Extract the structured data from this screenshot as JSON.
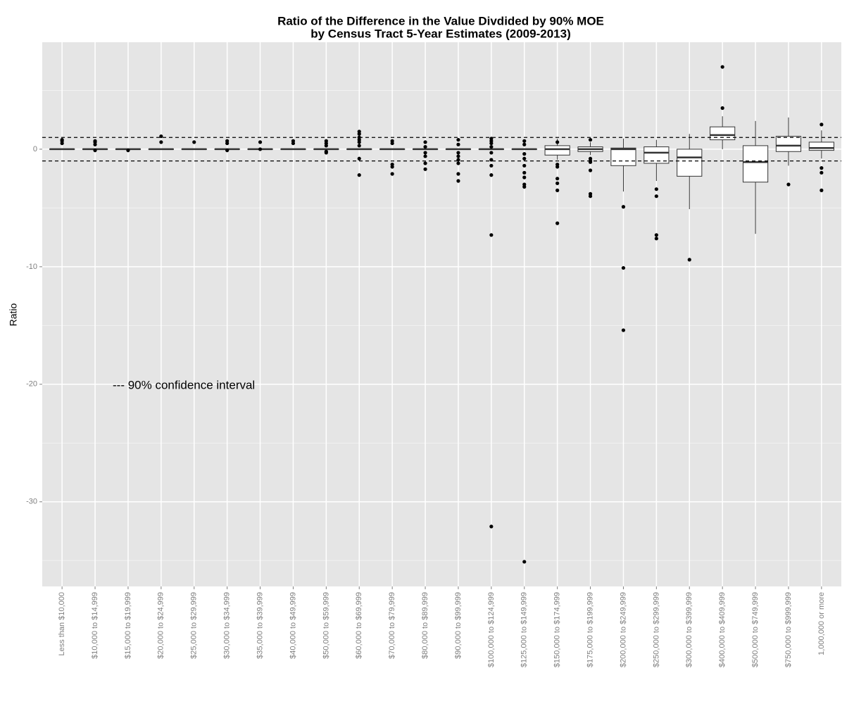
{
  "chart_data": {
    "type": "box",
    "title": [
      "Ratio of the Difference in the Value Divdided by 90% MOE",
      "by Census Tract 5-Year Estimates (2009-2013)"
    ],
    "y_label": "Ratio",
    "annotation": "--- 90% confidence interval",
    "categories": [
      "Less than $10,000",
      "$10,000 to $14,999",
      "$15,000 to $19,999",
      "$20,000 to $24,999",
      "$25,000 to $29,999",
      "$30,000 to $34,999",
      "$35,000 to $39,999",
      "$40,000 to $49,999",
      "$50,000 to $59,999",
      "$60,000 to $69,999",
      "$70,000 to $79,999",
      "$80,000 to $89,999",
      "$90,000 to $99,999",
      "$100,000 to $124,999",
      "$125,000 to $149,999",
      "$150,000 to $174,999",
      "$175,000 to $199,999",
      "$200,000 to $249,999",
      "$250,000 to $299,999",
      "$300,000 to $399,999",
      "$400,000 to $409,999",
      "$500,000 to $749,999",
      "$750,000 to $999,999",
      "1,000,000 or more"
    ],
    "boxes": [
      {
        "min": -0.05,
        "q1": -0.02,
        "median": 0,
        "q3": 0.02,
        "max": 0.05,
        "outliers": [
          0.5,
          0.7,
          0.8
        ]
      },
      {
        "min": -0.05,
        "q1": -0.02,
        "median": 0,
        "q3": 0.02,
        "max": 0.05,
        "outliers": [
          0.4,
          0.6,
          0.7,
          -0.1
        ]
      },
      {
        "min": -0.05,
        "q1": -0.02,
        "median": 0,
        "q3": 0.02,
        "max": 0.05,
        "outliers": [
          -0.1
        ]
      },
      {
        "min": -0.05,
        "q1": -0.02,
        "median": 0,
        "q3": 0.02,
        "max": 0.05,
        "outliers": [
          0.6,
          1.1
        ]
      },
      {
        "min": -0.05,
        "q1": -0.02,
        "median": 0,
        "q3": 0.02,
        "max": 0.05,
        "outliers": [
          0.6
        ]
      },
      {
        "min": -0.05,
        "q1": -0.02,
        "median": 0,
        "q3": 0.02,
        "max": 0.05,
        "outliers": [
          0.5,
          0.7,
          -0.1
        ]
      },
      {
        "min": -0.05,
        "q1": -0.02,
        "median": 0,
        "q3": 0.02,
        "max": 0.05,
        "outliers": [
          0.6,
          0
        ]
      },
      {
        "min": -0.05,
        "q1": -0.02,
        "median": 0,
        "q3": 0.02,
        "max": 0.05,
        "outliers": [
          0.5,
          0.7
        ]
      },
      {
        "min": -0.05,
        "q1": -0.02,
        "median": 0,
        "q3": 0.02,
        "max": 0.05,
        "outliers": [
          0.7,
          0.5,
          0.3,
          -0.2,
          -0.3
        ]
      },
      {
        "min": -0.05,
        "q1": -0.02,
        "median": 0,
        "q3": 0.02,
        "max": 0.05,
        "outliers": [
          1.5,
          1.3,
          1.0,
          0.8,
          0.6,
          0.3,
          -0.8,
          -2.2
        ]
      },
      {
        "min": -0.05,
        "q1": -0.02,
        "median": 0,
        "q3": 0.02,
        "max": 0.05,
        "outliers": [
          0.7,
          0.5,
          -1.3,
          -1.5,
          -2.1
        ]
      },
      {
        "min": -0.05,
        "q1": -0.02,
        "median": 0,
        "q3": 0.02,
        "max": 0.05,
        "outliers": [
          0.6,
          0.2,
          -0.3,
          -0.6,
          -1.2,
          -1.7
        ]
      },
      {
        "min": -0.05,
        "q1": -0.02,
        "median": 0,
        "q3": 0.02,
        "max": 0.05,
        "outliers": [
          0.8,
          0.4,
          -0.3,
          -0.6,
          -0.9,
          -1.2,
          -2.1,
          -2.7
        ]
      },
      {
        "min": -0.05,
        "q1": -0.02,
        "median": 0,
        "q3": 0.02,
        "max": 0.05,
        "outliers": [
          0.9,
          0.7,
          0.5,
          0.2,
          -0.3,
          -0.9,
          -1.4,
          -2.2,
          -7.3,
          -32.1
        ]
      },
      {
        "min": -0.05,
        "q1": -0.02,
        "median": 0,
        "q3": 0.02,
        "max": 0.05,
        "outliers": [
          0.7,
          0.4,
          -0.4,
          -0.8,
          -1.4,
          -2.0,
          -2.4,
          -3.0,
          -3.2,
          -35.1
        ]
      },
      {
        "min": -0.9,
        "q1": -0.5,
        "median": 0,
        "q3": 0.3,
        "max": 0.9,
        "outliers": [
          0.6,
          -1.3,
          -1.5,
          -2.5,
          -2.9,
          -3.5,
          -6.3
        ]
      },
      {
        "min": -0.5,
        "q1": -0.2,
        "median": 0,
        "q3": 0.2,
        "max": 0.6,
        "outliers": [
          0.8,
          -0.8,
          -1.0,
          -1.1,
          -1.8,
          -3.8,
          -4.0
        ]
      },
      {
        "min": -3.6,
        "q1": -1.4,
        "median": 0,
        "q3": 0.1,
        "max": 0.9,
        "outliers": [
          -4.9,
          -10.1,
          -15.4
        ]
      },
      {
        "min": -2.7,
        "q1": -1.2,
        "median": -0.3,
        "q3": 0.2,
        "max": 0.8,
        "outliers": [
          -3.4,
          -4.0,
          -7.3,
          -7.6
        ]
      },
      {
        "min": -5.1,
        "q1": -2.3,
        "median": -0.7,
        "q3": 0,
        "max": 1.3,
        "outliers": [
          -9.4
        ]
      },
      {
        "min": 0,
        "q1": 0.8,
        "median": 1.2,
        "q3": 1.9,
        "max": 2.8,
        "outliers": [
          3.5,
          7.0
        ]
      },
      {
        "min": -7.2,
        "q1": -2.8,
        "median": -1.1,
        "q3": 0.3,
        "max": 2.4,
        "outliers": []
      },
      {
        "min": -1.4,
        "q1": -0.2,
        "median": 0.3,
        "q3": 1.1,
        "max": 2.7,
        "outliers": [
          -3.0
        ]
      },
      {
        "min": -0.8,
        "q1": -0.1,
        "median": 0.1,
        "q3": 0.6,
        "max": 1.6,
        "outliers": [
          2.1,
          -1.6,
          -2.0,
          -3.5
        ]
      }
    ],
    "reference_lines": [
      1,
      -1
    ],
    "ylim": [
      -37.2,
      9.1
    ],
    "yticks": [
      0,
      -10,
      -20,
      -30
    ],
    "minor_grid": [
      5,
      -5,
      -15,
      -25,
      -35
    ],
    "grid": true
  }
}
